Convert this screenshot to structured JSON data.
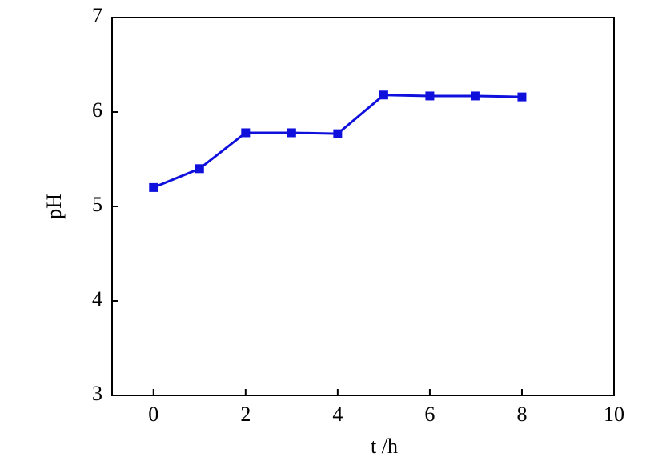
{
  "chart_data": {
    "type": "line",
    "xlabel": "t /h",
    "ylabel": "pH",
    "x": [
      0,
      1,
      2,
      3,
      4,
      5,
      6,
      7,
      8
    ],
    "series": [
      {
        "name": "pH",
        "color": "#1010dd",
        "values": [
          5.2,
          5.4,
          5.78,
          5.78,
          5.77,
          6.18,
          6.17,
          6.17,
          6.16
        ]
      }
    ],
    "xlim": [
      -0.9,
      10
    ],
    "ylim": [
      3,
      7
    ],
    "xticks": [
      0,
      2,
      4,
      6,
      8,
      10
    ],
    "yticks": [
      3,
      4,
      5,
      6,
      7
    ],
    "grid": false
  }
}
